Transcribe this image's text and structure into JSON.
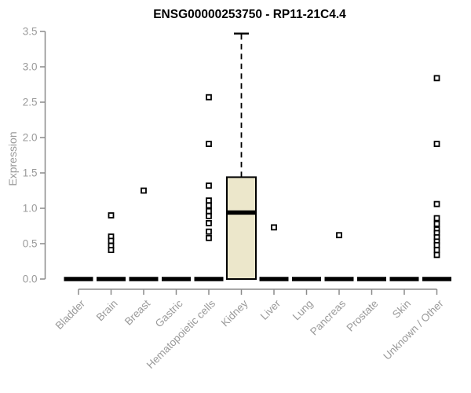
{
  "page": {
    "title": "ENSG00000253750 - RP11-21C4.4"
  },
  "chart_data": {
    "type": "boxplot",
    "title": "ENSG00000253750 - RP11-21C4.4",
    "xlabel": "",
    "ylabel": "Expression",
    "ylim": [
      0.0,
      3.5
    ],
    "yticks": [
      0.0,
      0.5,
      1.0,
      1.5,
      2.0,
      2.5,
      3.0,
      3.5
    ],
    "ytick_labels": [
      "0.0",
      "0.5",
      "1.0",
      "1.5",
      "2.0",
      "2.5",
      "3.0",
      "3.5"
    ],
    "grid": false,
    "legend": "none",
    "categories": [
      "Bladder",
      "Brain",
      "Breast",
      "Gastric",
      "Hematopoietic cells",
      "Kidney",
      "Liver",
      "Lung",
      "Pancreas",
      "Prostate",
      "Skin",
      "Unknown / Other"
    ],
    "boxes": [
      {
        "category": "Bladder",
        "q1": 0.0,
        "median": 0.0,
        "q3": 0.0,
        "whisker_low": 0.0,
        "whisker_high": 0.0,
        "outliers": []
      },
      {
        "category": "Brain",
        "q1": 0.0,
        "median": 0.0,
        "q3": 0.0,
        "whisker_low": 0.0,
        "whisker_high": 0.0,
        "outliers": [
          0.9,
          0.6,
          0.54,
          0.47,
          0.41
        ]
      },
      {
        "category": "Breast",
        "q1": 0.0,
        "median": 0.0,
        "q3": 0.0,
        "whisker_low": 0.0,
        "whisker_high": 0.0,
        "outliers": [
          1.25
        ]
      },
      {
        "category": "Gastric",
        "q1": 0.0,
        "median": 0.0,
        "q3": 0.0,
        "whisker_low": 0.0,
        "whisker_high": 0.0,
        "outliers": []
      },
      {
        "category": "Hematopoietic cells",
        "q1": 0.0,
        "median": 0.0,
        "q3": 0.0,
        "whisker_low": 0.0,
        "whisker_high": 0.0,
        "outliers": [
          2.57,
          1.91,
          1.32,
          1.11,
          1.04,
          0.96,
          0.89,
          0.79,
          0.67,
          0.58
        ]
      },
      {
        "category": "Kidney",
        "q1": 0.0,
        "median": 0.94,
        "q3": 1.44,
        "whisker_low": 0.0,
        "whisker_high": 3.47,
        "outliers": []
      },
      {
        "category": "Liver",
        "q1": 0.0,
        "median": 0.0,
        "q3": 0.0,
        "whisker_low": 0.0,
        "whisker_high": 0.0,
        "outliers": [
          0.73
        ]
      },
      {
        "category": "Lung",
        "q1": 0.0,
        "median": 0.0,
        "q3": 0.0,
        "whisker_low": 0.0,
        "whisker_high": 0.0,
        "outliers": []
      },
      {
        "category": "Pancreas",
        "q1": 0.0,
        "median": 0.0,
        "q3": 0.0,
        "whisker_low": 0.0,
        "whisker_high": 0.0,
        "outliers": [
          0.62
        ]
      },
      {
        "category": "Prostate",
        "q1": 0.0,
        "median": 0.0,
        "q3": 0.0,
        "whisker_low": 0.0,
        "whisker_high": 0.0,
        "outliers": []
      },
      {
        "category": "Skin",
        "q1": 0.0,
        "median": 0.0,
        "q3": 0.0,
        "whisker_low": 0.0,
        "whisker_high": 0.0,
        "outliers": []
      },
      {
        "category": "Unknown / Other",
        "q1": 0.0,
        "median": 0.0,
        "q3": 0.0,
        "whisker_low": 0.0,
        "whisker_high": 0.0,
        "outliers": [
          2.84,
          1.91,
          1.06,
          0.86,
          0.78,
          0.7,
          0.65,
          0.59,
          0.53,
          0.48,
          0.41,
          0.34
        ]
      }
    ],
    "colors": {
      "title": "#000000",
      "axis": "#8a8a8a",
      "axis_label": "#9a9a9a",
      "box_fill": "#ece7cb",
      "box_border": "#000000",
      "median": "#000000",
      "whisker": "#000000",
      "outlier_stroke": "#000000",
      "outlier_fill": "#ffffff",
      "background": "#ffffff"
    }
  }
}
